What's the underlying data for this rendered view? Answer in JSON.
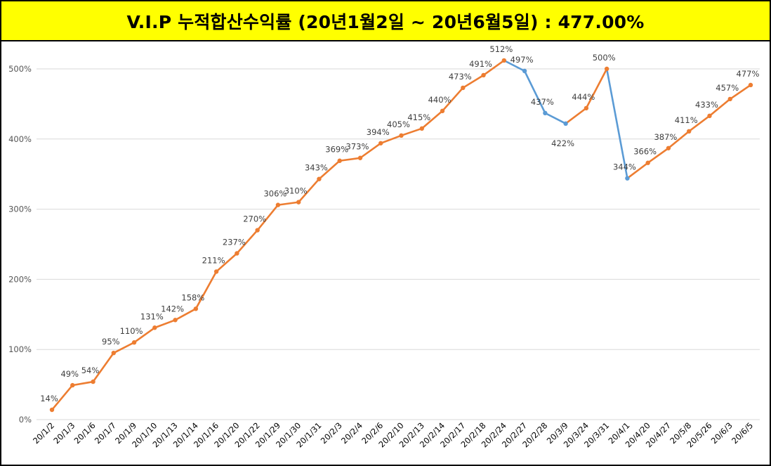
{
  "title": "V.I.P 누적합산수익률 (20년1월2일 ~ 20년6월5일) : 477.00%",
  "chart_data": {
    "type": "line",
    "title": "V.I.P 누적합산수익률 (20년1월2일 ~ 20년6월5일) : 477.00%",
    "xlabel": "",
    "ylabel": "",
    "ylim": [
      0,
      500
    ],
    "yticks": [
      0,
      100,
      200,
      300,
      400,
      500
    ],
    "ytick_labels": [
      "0%",
      "100%",
      "200%",
      "300%",
      "400%",
      "500%"
    ],
    "grid": true,
    "legend": "none",
    "colors": {
      "up": "#ed7d31",
      "down": "#5b9bd5",
      "grid": "#d9d9d9",
      "title_bg": "#ffff00"
    },
    "categories": [
      "20/1/2",
      "20/1/3",
      "20/1/6",
      "20/1/7",
      "20/1/9",
      "20/1/10",
      "20/1/13",
      "20/1/14",
      "20/1/16",
      "20/1/20",
      "20/1/22",
      "20/1/29",
      "20/1/30",
      "20/1/31",
      "20/2/3",
      "20/2/4",
      "20/2/6",
      "20/2/10",
      "20/2/13",
      "20/2/14",
      "20/2/17",
      "20/2/18",
      "20/2/24",
      "20/2/27",
      "20/2/28",
      "20/3/9",
      "20/3/24",
      "20/3/31",
      "20/4/1",
      "20/4/20",
      "20/4/27",
      "20/5/8",
      "20/5/26",
      "20/6/3",
      "20/6/5"
    ],
    "values": [
      14,
      49,
      54,
      95,
      110,
      131,
      142,
      158,
      211,
      237,
      270,
      306,
      310,
      343,
      369,
      373,
      394,
      405,
      415,
      440,
      473,
      491,
      512,
      497,
      437,
      422,
      444,
      500,
      344,
      366,
      387,
      411,
      433,
      457,
      477
    ],
    "data_labels": [
      "14%",
      "49%",
      "54%",
      "95%",
      "110%",
      "131%",
      "142%",
      "158%",
      "211%",
      "237%",
      "270%",
      "306%",
      "310%",
      "343%",
      "369%",
      "373%",
      "394%",
      "405%",
      "415%",
      "440%",
      "473%",
      "491%",
      "512%",
      "497%",
      "437%",
      "422%",
      "444%",
      "500%",
      "344%",
      "366%",
      "387%",
      "411%",
      "433%",
      "457%",
      "477%"
    ],
    "label_below": [
      25
    ]
  }
}
